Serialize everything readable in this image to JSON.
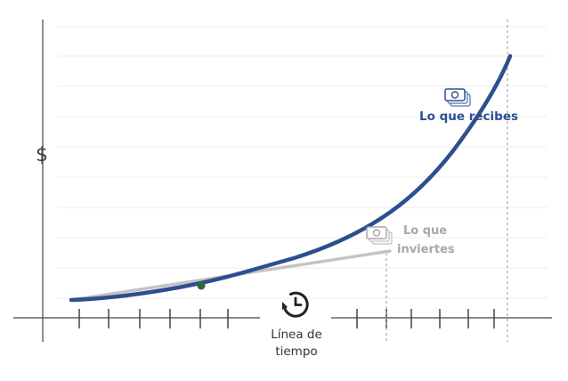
{
  "axis": {
    "y_symbol": "$"
  },
  "timeline": {
    "label_line1": "Línea de",
    "label_line2": "tiempo",
    "icon": "clock-rewind-icon"
  },
  "series": {
    "received": {
      "label": "Lo que recibes",
      "icon": "money-stack-icon"
    },
    "invested": {
      "label_line1": "Lo que",
      "label_line2": "inviertes",
      "icon": "money-stack-icon"
    }
  },
  "colors": {
    "received_curve": "#2c4f8f",
    "invested_line": "#c4c4c4",
    "axis": "#444444",
    "gridline": "#ececec",
    "marker_dot": "#2e6b2e",
    "dashed_guide": "#9a9a9a",
    "invested_label": "#a8a8a8"
  }
}
